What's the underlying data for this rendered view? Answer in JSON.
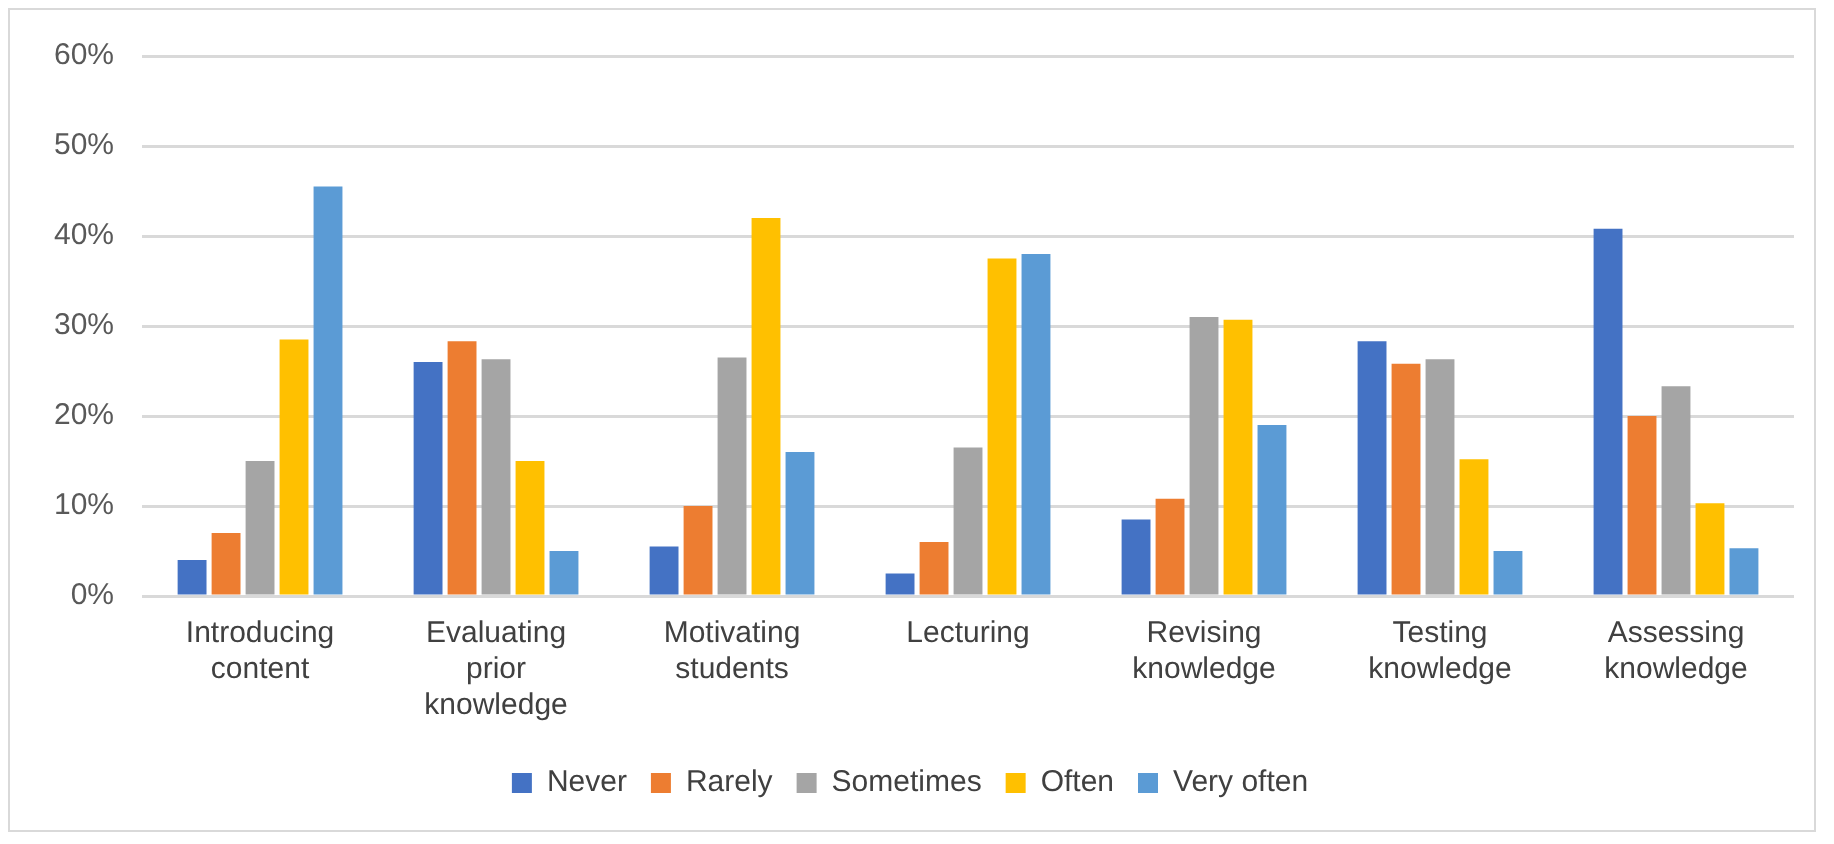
{
  "chart_data": {
    "type": "bar",
    "categories": [
      "Introducing content",
      "Evaluating prior knowledge",
      "Motivating students",
      "Lecturing",
      "Revising knowledge",
      "Testing knowledge",
      "Assessing knowledge"
    ],
    "series": [
      {
        "name": "Never",
        "color": "#4472c4",
        "values": [
          4,
          26,
          5.5,
          2.5,
          8.5,
          28.3,
          40.8
        ]
      },
      {
        "name": "Rarely",
        "color": "#ed7d31",
        "values": [
          7,
          28.3,
          10,
          6,
          10.8,
          25.8,
          20
        ]
      },
      {
        "name": "Sometimes",
        "color": "#a5a5a5",
        "values": [
          15,
          26.3,
          26.5,
          16.5,
          31,
          26.3,
          23.3
        ]
      },
      {
        "name": "Often",
        "color": "#ffc000",
        "values": [
          28.5,
          15,
          42,
          37.5,
          30.7,
          15.2,
          10.3
        ]
      },
      {
        "name": "Very often",
        "color": "#5b9bd5",
        "values": [
          45.5,
          5,
          16,
          38,
          19,
          5,
          5.3
        ]
      }
    ],
    "ylim": [
      0,
      60
    ],
    "yticks": [
      {
        "value": 0,
        "label": "0%"
      },
      {
        "value": 10,
        "label": "10%"
      },
      {
        "value": 20,
        "label": "20%"
      },
      {
        "value": 30,
        "label": "30%"
      },
      {
        "value": 40,
        "label": "40%"
      },
      {
        "value": 50,
        "label": "50%"
      },
      {
        "value": 60,
        "label": "60%"
      }
    ],
    "grid": "y",
    "legend": "bottom"
  }
}
